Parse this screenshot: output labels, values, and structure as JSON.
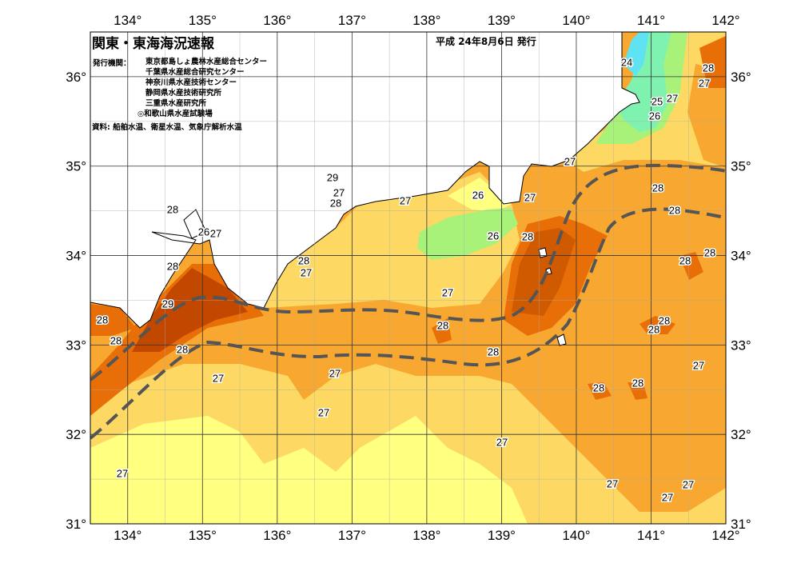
{
  "header": {
    "title": "関東・東海海況速報",
    "date": "平成 24年8月6日 発行",
    "issuer_label": "発行機関：",
    "issuers": [
      "東京都島しょ農林水産総合センター",
      "千葉県水産総合研究センター",
      "神奈川県水産技術センター",
      "静岡県水産技術研究所",
      "三重県水産研究所",
      "◎和歌山県水産試験場"
    ],
    "source": "資料: 船舶水温、衛星水温、気象庁解析水温"
  },
  "axes": {
    "longitude_ticks": [
      "134°",
      "135°",
      "136°",
      "137°",
      "138°",
      "139°",
      "140°",
      "141°",
      "142°"
    ],
    "latitude_ticks": [
      "36°",
      "35°",
      "34°",
      "33°",
      "32°",
      "31°"
    ],
    "lon_range": [
      133.5,
      142
    ],
    "lat_range": [
      31,
      36.5
    ]
  },
  "contour_labels": [
    "24",
    "28",
    "27",
    "25",
    "27",
    "26",
    "27",
    "28",
    "28",
    "27",
    "26",
    "26",
    "28",
    "28",
    "28",
    "27",
    "29",
    "27",
    "28",
    "28",
    "26",
    "27",
    "28",
    "28",
    "27",
    "29",
    "28",
    "28",
    "28",
    "27",
    "28",
    "28",
    "28",
    "28",
    "27",
    "27",
    "27",
    "28",
    "28",
    "27",
    "27",
    "27",
    "27",
    "27",
    "27"
  ],
  "colors": {
    "t24": "#5fe3f2",
    "t25": "#7ff2b0",
    "t26": "#a8f27a",
    "t26_5": "#ffff80",
    "t27": "#fdd964",
    "t27_5": "#f8a830",
    "t28": "#e86e08",
    "t29": "#c24800",
    "land": "#ffffff",
    "kuroshio_axis": "#555555"
  }
}
